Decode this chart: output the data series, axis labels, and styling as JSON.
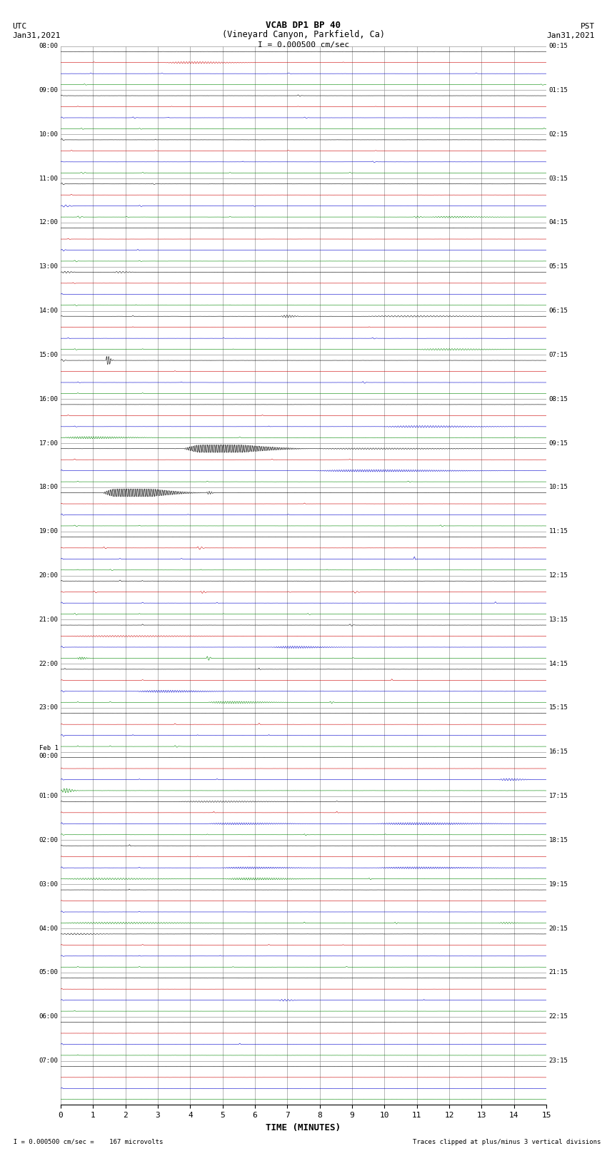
{
  "title_line1": "VCAB DP1 BP 40",
  "title_line2": "(Vineyard Canyon, Parkfield, Ca)",
  "scale_text": "I = 0.000500 cm/sec",
  "utc_label": "UTC",
  "utc_date": "Jan31,2021",
  "pst_label": "PST",
  "pst_date": "Jan31,2021",
  "xlabel": "TIME (MINUTES)",
  "bottom_left": "  I = 0.000500 cm/sec =    167 microvolts",
  "bottom_right": "Traces clipped at plus/minus 3 vertical divisions",
  "n_rows": 24,
  "xlim": [
    0,
    15
  ],
  "xticks": [
    0,
    1,
    2,
    3,
    4,
    5,
    6,
    7,
    8,
    9,
    10,
    11,
    12,
    13,
    14,
    15
  ],
  "row_labels_utc": [
    "08:00",
    "09:00",
    "10:00",
    "11:00",
    "12:00",
    "13:00",
    "14:00",
    "15:00",
    "16:00",
    "17:00",
    "18:00",
    "19:00",
    "20:00",
    "21:00",
    "22:00",
    "23:00",
    "Feb 1\n00:00",
    "01:00",
    "02:00",
    "03:00",
    "04:00",
    "05:00",
    "06:00",
    "07:00"
  ],
  "row_labels_pst": [
    "00:15",
    "01:15",
    "02:15",
    "03:15",
    "04:15",
    "05:15",
    "06:15",
    "07:15",
    "08:15",
    "09:15",
    "10:15",
    "11:15",
    "12:15",
    "13:15",
    "14:15",
    "15:15",
    "16:15",
    "17:15",
    "18:15",
    "19:15",
    "20:15",
    "21:15",
    "22:15",
    "23:15"
  ],
  "black": "#000000",
  "red": "#cc0000",
  "blue": "#0000cc",
  "green": "#008800",
  "background": "#ffffff",
  "grid_color": "#999999",
  "fig_width": 8.5,
  "fig_height": 16.13,
  "sub_rows_per_row": 4,
  "trace_scale": 0.35
}
